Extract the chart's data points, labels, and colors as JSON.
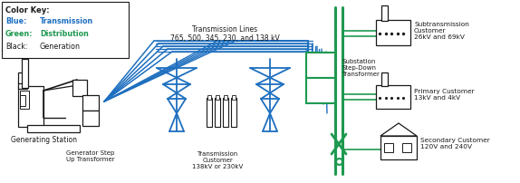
{
  "blue": "#1E6FBF",
  "green": "#1E9950",
  "black": "#1A1A1A",
  "white": "#FFFFFF",
  "bg": "#FFFFFF",
  "figsize": [
    5.74,
    2.02
  ],
  "dpi": 100,
  "color_key": {
    "title": "Color Key:",
    "entries": [
      {
        "label": "Blue:",
        "value": "Transmission",
        "color_key": "blue",
        "bold": true
      },
      {
        "label": "Green:",
        "value": "Distribution",
        "color_key": "green",
        "bold": true
      },
      {
        "label": "Black:",
        "value": "Generation",
        "color_key": "black",
        "bold": false
      }
    ]
  },
  "labels": {
    "generating_station": "Generating Station",
    "generator_step_up": "Generator Step\nUp Transformer",
    "transmission_lines": "Transmission Lines\n765, 500, 345, 230, and 138 kV",
    "transmission_customer": "Transmission\nCustomer\n138kV or 230kV",
    "substation": "Substation\nStep-Down\nTransformer",
    "subtransmission": "Subtransmission\nCustomer\n26kV and 69kV",
    "primary": "Primary Customer\n13kV and 4kV",
    "secondary": "Secondary Customer\n120V and 240V"
  }
}
